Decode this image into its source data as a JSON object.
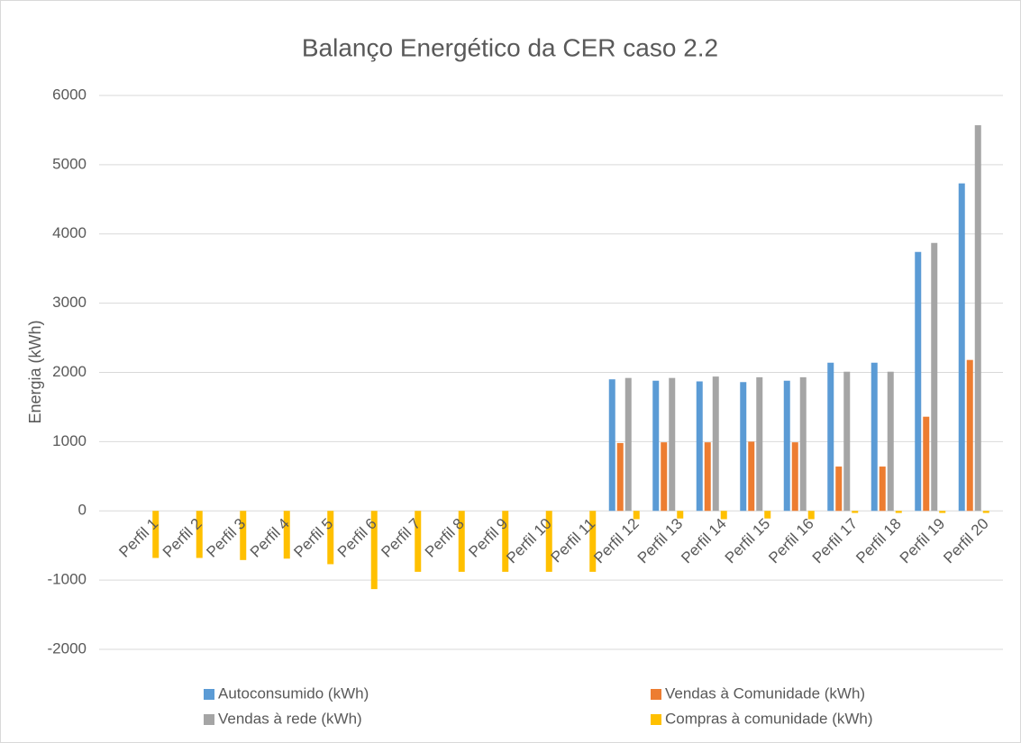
{
  "chart_data": {
    "type": "bar",
    "title": "Balanço Energético da CER caso 2.2",
    "y_label": "Energia (kWh)",
    "categories": [
      "Perfil 1",
      "Perfil 2",
      "Perfil 3",
      "Perfil 4",
      "Perfil 5",
      "Perfil 6",
      "Perfil 7",
      "Perfil 8",
      "Perfil 9",
      "Perfil 10",
      "Perfil 11",
      "Perfil 12",
      "Perfil 13",
      "Perfil 14",
      "Perfil 15",
      "Perfil 16",
      "Perfil 17",
      "Perfil 18",
      "Perfil 19",
      "Perfil 20"
    ],
    "series": [
      {
        "name": "Autoconsumido (kWh)",
        "color": "#5b9bd5",
        "values": [
          0,
          0,
          0,
          0,
          0,
          0,
          0,
          0,
          0,
          0,
          0,
          1900,
          1880,
          1870,
          1860,
          1880,
          2140,
          2140,
          3740,
          4730
        ]
      },
      {
        "name": "Vendas à Comunidade (kWh)",
        "color": "#ed7d31",
        "values": [
          0,
          0,
          0,
          0,
          0,
          0,
          0,
          0,
          0,
          0,
          0,
          980,
          990,
          990,
          1000,
          990,
          640,
          640,
          1360,
          2180
        ]
      },
      {
        "name": "Vendas à rede (kWh)",
        "color": "#a5a5a5",
        "values": [
          0,
          0,
          0,
          0,
          0,
          0,
          0,
          0,
          0,
          0,
          0,
          1920,
          1920,
          1940,
          1930,
          1930,
          2010,
          2010,
          3870,
          5570
        ]
      },
      {
        "name": "Compras à comunidade (kWh)",
        "color": "#ffc000",
        "values": [
          -680,
          -680,
          -710,
          -690,
          -770,
          -1130,
          -880,
          -880,
          -880,
          -880,
          -880,
          -120,
          -110,
          -120,
          -110,
          -120,
          -30,
          -30,
          -30,
          -30
        ]
      }
    ],
    "ylim": [
      -2000,
      6000
    ],
    "yticks": [
      -2000,
      -1000,
      0,
      1000,
      2000,
      3000,
      4000,
      5000,
      6000
    ],
    "grid": true,
    "legend": "bottom"
  }
}
